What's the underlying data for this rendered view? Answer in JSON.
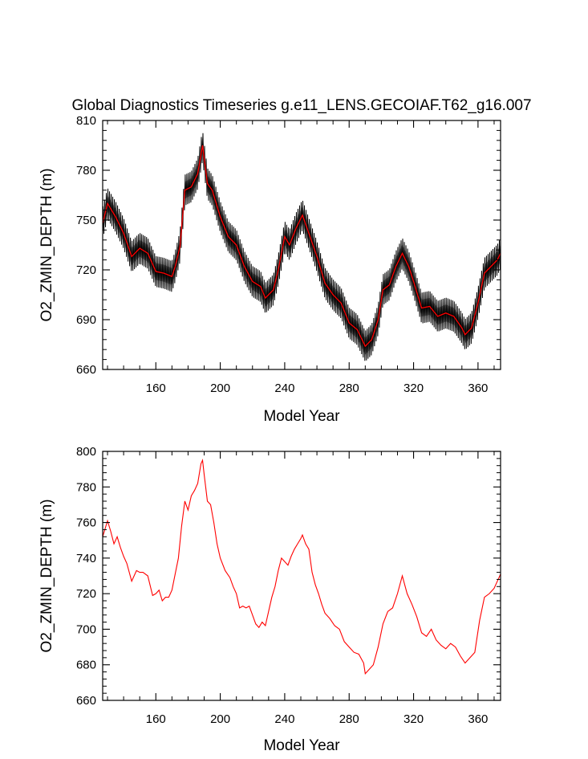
{
  "title": "Global Diagnostics Timeseries g.e11_LENS.GECOIAF.T62_g16.007",
  "colors": {
    "monthly": "#000000",
    "monthly_shade": "#555555",
    "annual": "#ff0000",
    "axes": "#000000"
  },
  "chart_data": [
    {
      "type": "line",
      "xlabel": "Model Year",
      "ylabel": "O2_ZMIN_DEPTH (m)",
      "xlim": [
        127,
        374
      ],
      "ylim": [
        660,
        810
      ],
      "xticks": [
        160,
        200,
        240,
        280,
        320,
        360
      ],
      "yticks": [
        660,
        690,
        720,
        750,
        780,
        810
      ],
      "x_minor_step": 10,
      "y_minor_step": 6,
      "series": [
        {
          "name": "monthly",
          "style": "black seasonal cycle around annual mean",
          "seasonal_amplitude": 6
        },
        {
          "name": "annual_mean",
          "color": "#ff0000",
          "x": [
            127,
            130,
            135,
            140,
            145,
            150,
            155,
            160,
            165,
            170,
            172,
            175,
            178,
            182,
            186,
            189,
            192,
            195,
            200,
            205,
            210,
            215,
            220,
            225,
            228,
            233,
            236,
            240,
            243,
            247,
            251,
            255,
            260,
            265,
            270,
            275,
            280,
            285,
            290,
            294,
            298,
            301,
            305,
            309,
            313,
            317,
            320,
            325,
            330,
            335,
            340,
            345,
            350,
            352,
            356,
            360,
            364,
            368,
            372,
            374
          ],
          "values": [
            748,
            760,
            752,
            742,
            728,
            733,
            730,
            719,
            718,
            716,
            722,
            734,
            768,
            770,
            778,
            795,
            772,
            768,
            752,
            740,
            735,
            722,
            713,
            710,
            703,
            708,
            720,
            740,
            735,
            745,
            753,
            742,
            728,
            712,
            705,
            700,
            688,
            684,
            674,
            678,
            690,
            708,
            711,
            722,
            730,
            722,
            713,
            697,
            698,
            692,
            694,
            692,
            685,
            681,
            685,
            700,
            718,
            722,
            726,
            730
          ]
        }
      ]
    },
    {
      "type": "line",
      "xlabel": "Model Year",
      "ylabel": "O2_ZMIN_DEPTH (m)",
      "xlim": [
        127,
        374
      ],
      "ylim": [
        660,
        800
      ],
      "xticks": [
        160,
        200,
        240,
        280,
        320,
        360
      ],
      "yticks": [
        660,
        680,
        700,
        720,
        740,
        760,
        780,
        800
      ],
      "x_minor_step": 10,
      "y_minor_step": 4,
      "series": [
        {
          "name": "annual_mean",
          "color": "#ff0000",
          "x": [
            127,
            130,
            132,
            134,
            136,
            138,
            140,
            142,
            145,
            148,
            150,
            152,
            155,
            158,
            160,
            162,
            164,
            166,
            168,
            170,
            172,
            174,
            176,
            178,
            180,
            182,
            184,
            186,
            188,
            189,
            190,
            192,
            194,
            196,
            198,
            200,
            203,
            206,
            208,
            210,
            212,
            214,
            216,
            218,
            220,
            222,
            224,
            226,
            228,
            230,
            232,
            234,
            236,
            238,
            240,
            242,
            244,
            246,
            248,
            250,
            251,
            253,
            255,
            257,
            259,
            261,
            263,
            265,
            268,
            271,
            274,
            277,
            280,
            283,
            286,
            289,
            290,
            292,
            295,
            298,
            301,
            304,
            307,
            310,
            313,
            316,
            319,
            322,
            325,
            328,
            331,
            334,
            337,
            340,
            343,
            346,
            349,
            352,
            355,
            358,
            361,
            364,
            367,
            370,
            374
          ],
          "values": [
            752,
            761,
            755,
            748,
            752,
            746,
            741,
            737,
            727,
            733,
            732,
            732,
            730,
            719,
            720,
            722,
            716,
            718,
            718,
            722,
            731,
            740,
            758,
            772,
            767,
            775,
            778,
            782,
            793,
            795,
            787,
            772,
            770,
            760,
            748,
            740,
            733,
            729,
            724,
            720,
            712,
            713,
            712,
            713,
            708,
            703,
            701,
            704,
            702,
            710,
            718,
            724,
            733,
            740,
            738,
            736,
            741,
            745,
            748,
            751,
            753,
            748,
            745,
            732,
            725,
            720,
            714,
            709,
            706,
            702,
            700,
            693,
            690,
            687,
            686,
            681,
            675,
            677,
            680,
            690,
            703,
            710,
            712,
            720,
            730,
            720,
            714,
            707,
            698,
            696,
            700,
            694,
            691,
            689,
            692,
            690,
            685,
            681,
            684,
            687,
            705,
            718,
            720,
            723,
            731
          ]
        }
      ]
    }
  ]
}
